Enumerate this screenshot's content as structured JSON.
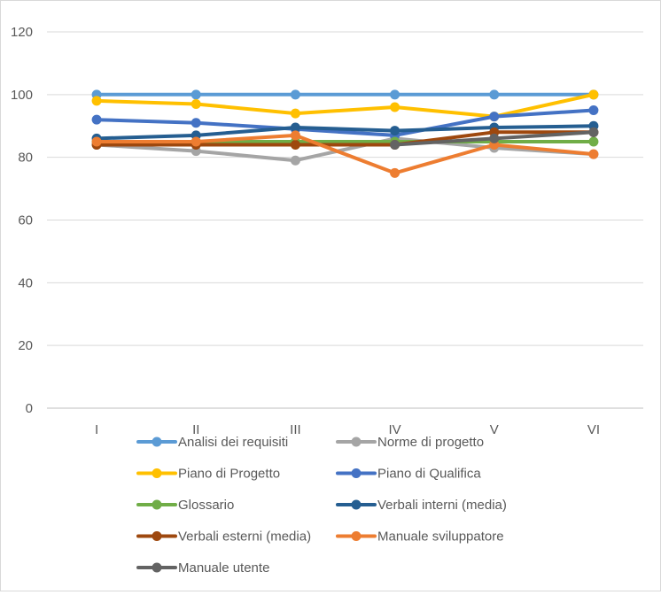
{
  "chart_data": {
    "type": "line",
    "title": "",
    "xlabel": "",
    "ylabel": "",
    "categories": [
      "I",
      "II",
      "III",
      "IV",
      "V",
      "VI"
    ],
    "ylim": [
      0,
      120
    ],
    "yticks": [
      "0",
      "20",
      "40",
      "60",
      "80",
      "100",
      "120"
    ],
    "grid": true,
    "legend_position": "bottom",
    "series": [
      {
        "name": "Analisi dei requisiti",
        "color": "#5b9bd5",
        "values": [
          100,
          100,
          100,
          100,
          100,
          100
        ]
      },
      {
        "name": "Norme di progetto",
        "color": "#a5a5a5",
        "values": [
          84,
          82,
          79,
          86,
          83,
          81
        ]
      },
      {
        "name": "Piano di Progetto",
        "color": "#ffc000",
        "values": [
          98,
          97,
          94,
          96,
          93,
          100
        ]
      },
      {
        "name": "Piano di Qualifica",
        "color": "#4472c4",
        "values": [
          92,
          91,
          89,
          87,
          93,
          95
        ]
      },
      {
        "name": "Glossario",
        "color": "#70ad47",
        "values": [
          85,
          85,
          85,
          85,
          85,
          85
        ]
      },
      {
        "name": "Verbali interni (media)",
        "color": "#255e91",
        "values": [
          86,
          87,
          89.5,
          88.5,
          89.5,
          90
        ]
      },
      {
        "name": "Verbali esterni (media)",
        "color": "#9e480e",
        "values": [
          84,
          84,
          84,
          84,
          88,
          88
        ]
      },
      {
        "name": "Manuale sviluppatore",
        "color": "#ed7d31",
        "values": [
          85,
          85,
          87,
          75,
          84,
          81
        ]
      },
      {
        "name": "Manuale utente",
        "color": "#636363",
        "values": [
          null,
          null,
          null,
          84,
          86,
          88
        ]
      }
    ]
  }
}
